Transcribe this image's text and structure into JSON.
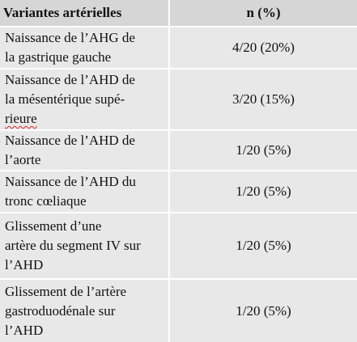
{
  "table": {
    "header": [
      "Variantes artérielles",
      "n (%)"
    ],
    "rows": [
      [
        [
          "Naissance de l’AHG de",
          "la gastrique gauche"
        ],
        "4/20 (20%)"
      ],
      [
        [
          "Naissance de l’AHD de",
          "la mésentérique supé-",
          "rieure"
        ],
        "3/20 (15%)"
      ],
      [
        [
          "Naissance de l’AHD de",
          "l’aorte"
        ],
        "1/20 (5%)"
      ],
      [
        [
          "Naissance de l’AHD du",
          "tronc cœliaque"
        ],
        "1/20 (5%)"
      ],
      [
        [
          "Glissement d’une",
          "artère du segment IV sur",
          "l’AHD"
        ],
        "1/20 (5%)"
      ],
      [
        [
          "Glissement de l’artère",
          "gastroduodénale sur",
          "l’AHD"
        ],
        "1/20 (5%)"
      ]
    ]
  }
}
